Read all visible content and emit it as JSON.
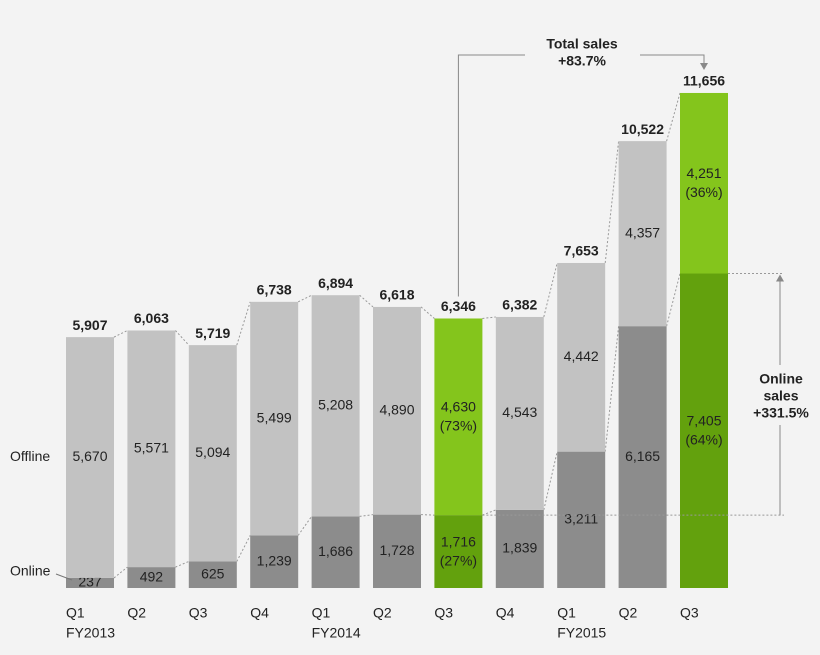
{
  "chart_data": {
    "type": "stacked-bar",
    "categories": [
      "Q1",
      "Q2",
      "Q3",
      "Q4",
      "Q1",
      "Q2",
      "Q3",
      "Q4",
      "Q1",
      "Q2",
      "Q3"
    ],
    "fiscal_years": [
      "FY2013",
      null,
      null,
      null,
      "FY2014",
      null,
      null,
      null,
      "FY2015",
      null,
      null
    ],
    "series": [
      {
        "name": "Online",
        "color": "#8c8c8c",
        "highlight_color": "#63a10d",
        "text_color": "#ffffff",
        "values": [
          237,
          492,
          625,
          1239,
          1686,
          1728,
          1716,
          1839,
          3211,
          6165,
          7405
        ],
        "value_labels": [
          "237",
          "492",
          "625",
          "1,239",
          "1,686",
          "1,728",
          "1,716",
          "1,839",
          "3,211",
          "6,165",
          "7,405"
        ],
        "shares": [
          null,
          null,
          null,
          null,
          null,
          null,
          27,
          null,
          null,
          null,
          64
        ],
        "share_labels": [
          null,
          null,
          null,
          null,
          null,
          null,
          "(27%)",
          null,
          null,
          null,
          "(64%)"
        ]
      },
      {
        "name": "Offline",
        "color": "#c2c2c2",
        "highlight_color": "#84c51c",
        "text_color": "#222222",
        "values": [
          5670,
          5571,
          5094,
          5499,
          5208,
          4890,
          4630,
          4543,
          4442,
          4357,
          4251
        ],
        "value_labels": [
          "5,670",
          "5,571",
          "5,094",
          "5,499",
          "5,208",
          "4,890",
          "4,630",
          "4,543",
          "4,442",
          "4,357",
          "4,251"
        ],
        "shares": [
          null,
          null,
          null,
          null,
          null,
          null,
          73,
          null,
          null,
          null,
          36
        ],
        "share_labels": [
          null,
          null,
          null,
          null,
          null,
          null,
          "(73%)",
          null,
          null,
          null,
          "(36%)"
        ]
      }
    ],
    "totals": [
      5907,
      6063,
      5719,
      6738,
      6894,
      6618,
      6346,
      6382,
      7653,
      10522,
      11656
    ],
    "total_labels": [
      "5,907",
      "6,063",
      "5,719",
      "6,738",
      "6,894",
      "6,618",
      "6,346",
      "6,382",
      "7,653",
      "10,522",
      "11,656"
    ],
    "highlight_categories": [
      6,
      10
    ],
    "ylim": [
      0,
      12000
    ],
    "total_annotation": {
      "label": "Total sales",
      "change": "+83.7%"
    },
    "online_annotation": {
      "label": [
        "Online",
        "sales"
      ],
      "change": "+331.5%",
      "color": "#6aaa1a"
    }
  }
}
